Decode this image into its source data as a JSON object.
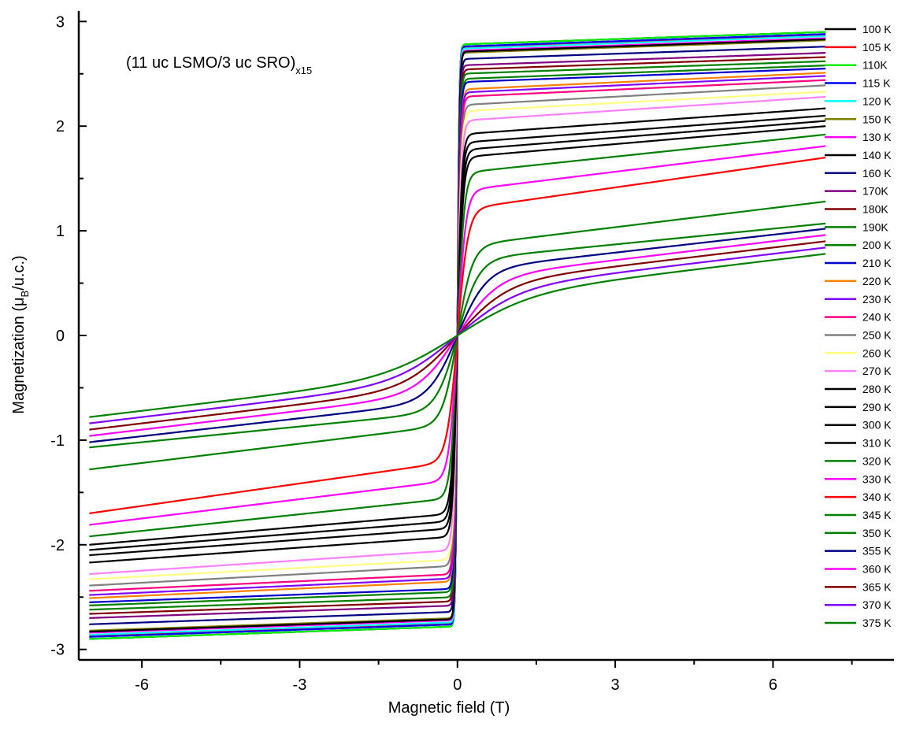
{
  "chart_data": {
    "type": "line",
    "title": "",
    "annotation": {
      "text": "(11 uc LSMO/3 uc SRO)",
      "subscript": "x15"
    },
    "xlabel": "Magnetic field (T)",
    "ylabel": {
      "prefix": "Magnetization (μ",
      "subscript": "B",
      "suffix": "/u.c.)"
    },
    "xlim": [
      -7.2,
      8.3
    ],
    "ylim": [
      -3.1,
      3.1
    ],
    "x_range": [
      -7,
      7
    ],
    "x_ticks": [
      -6,
      -3,
      0,
      3,
      6
    ],
    "x_tick_labels": [
      "-6",
      "-3",
      "0",
      "3",
      "6"
    ],
    "y_ticks": [
      -3,
      -2,
      -1,
      0,
      1,
      2,
      3
    ],
    "y_tick_labels": [
      "-3",
      "-2",
      "-1",
      "0",
      "1",
      "2",
      "3"
    ],
    "grid": false,
    "legend_position": "right",
    "series": [
      {
        "name": "100 K",
        "color": "#000000",
        "m_at_7T": 2.9,
        "m_sat": 2.78,
        "width": 0.035
      },
      {
        "name": "105 K",
        "color": "#ff0000",
        "m_at_7T": 2.87,
        "m_sat": 2.75,
        "width": 0.035
      },
      {
        "name": "110K",
        "color": "#00ee00",
        "m_at_7T": 2.9,
        "m_sat": 2.78,
        "width": 0.035
      },
      {
        "name": "115 K",
        "color": "#0000ff",
        "m_at_7T": 2.88,
        "m_sat": 2.76,
        "width": 0.035
      },
      {
        "name": "120 K",
        "color": "#00ffff",
        "m_at_7T": 2.86,
        "m_sat": 2.74,
        "width": 0.035
      },
      {
        "name": "150 K",
        "color": "#808000",
        "m_at_7T": 2.82,
        "m_sat": 2.7,
        "width": 0.04
      },
      {
        "name": "130 K",
        "color": "#ff00ff",
        "m_at_7T": 2.84,
        "m_sat": 2.72,
        "width": 0.038
      },
      {
        "name": "140 K",
        "color": "#000000",
        "m_at_7T": 2.83,
        "m_sat": 2.71,
        "width": 0.04
      },
      {
        "name": "160 K",
        "color": "#000080",
        "m_at_7T": 2.76,
        "m_sat": 2.64,
        "width": 0.045
      },
      {
        "name": "170K",
        "color": "#800080",
        "m_at_7T": 2.7,
        "m_sat": 2.58,
        "width": 0.045
      },
      {
        "name": "180K",
        "color": "#800000",
        "m_at_7T": 2.66,
        "m_sat": 2.54,
        "width": 0.05
      },
      {
        "name": "190K",
        "color": "#008000",
        "m_at_7T": 2.62,
        "m_sat": 2.5,
        "width": 0.05
      },
      {
        "name": "200 K",
        "color": "#008000",
        "m_at_7T": 2.58,
        "m_sat": 2.45,
        "width": 0.055
      },
      {
        "name": "210 K",
        "color": "#0000cc",
        "m_at_7T": 2.55,
        "m_sat": 2.42,
        "width": 0.055
      },
      {
        "name": "220 K",
        "color": "#ff8000",
        "m_at_7T": 2.51,
        "m_sat": 2.35,
        "width": 0.06
      },
      {
        "name": "230 K",
        "color": "#8000ff",
        "m_at_7T": 2.48,
        "m_sat": 2.32,
        "width": 0.06
      },
      {
        "name": "240 K",
        "color": "#ff0080",
        "m_at_7T": 2.44,
        "m_sat": 2.28,
        "width": 0.065
      },
      {
        "name": "250 K",
        "color": "#808080",
        "m_at_7T": 2.39,
        "m_sat": 2.2,
        "width": 0.07
      },
      {
        "name": "260 K",
        "color": "#ffff80",
        "m_at_7T": 2.33,
        "m_sat": 2.14,
        "width": 0.075
      },
      {
        "name": "270 K",
        "color": "#ff80ff",
        "m_at_7T": 2.28,
        "m_sat": 2.05,
        "width": 0.08
      },
      {
        "name": "280 K",
        "color": "#000000",
        "m_at_7T": 2.17,
        "m_sat": 1.92,
        "width": 0.085
      },
      {
        "name": "290 K",
        "color": "#000000",
        "m_at_7T": 2.1,
        "m_sat": 1.84,
        "width": 0.09
      },
      {
        "name": "300 K",
        "color": "#000000",
        "m_at_7T": 2.05,
        "m_sat": 1.77,
        "width": 0.1
      },
      {
        "name": "310 K",
        "color": "#000000",
        "m_at_7T": 2.0,
        "m_sat": 1.7,
        "width": 0.11
      },
      {
        "name": "320 K",
        "color": "#008000",
        "m_at_7T": 1.92,
        "m_sat": 1.55,
        "width": 0.13
      },
      {
        "name": "330 K",
        "color": "#ff00ff",
        "m_at_7T": 1.81,
        "m_sat": 1.38,
        "width": 0.16
      },
      {
        "name": "340 K",
        "color": "#ff0000",
        "m_at_7T": 1.7,
        "m_sat": 1.2,
        "width": 0.2
      },
      {
        "name": "345 K",
        "color": "#008000",
        "m_at_7T": 1.28,
        "m_sat": 0.85,
        "width": 0.28
      },
      {
        "name": "350 K",
        "color": "#008000",
        "m_at_7T": 1.07,
        "m_sat": 0.72,
        "width": 0.4
      },
      {
        "name": "355 K",
        "color": "#000080",
        "m_at_7T": 1.02,
        "m_sat": 0.62,
        "width": 0.55
      },
      {
        "name": "360 K",
        "color": "#ff00ff",
        "m_at_7T": 0.96,
        "m_sat": 0.54,
        "width": 0.75
      },
      {
        "name": "365 K",
        "color": "#800000",
        "m_at_7T": 0.9,
        "m_sat": 0.48,
        "width": 0.95
      },
      {
        "name": "370 K",
        "color": "#8000ff",
        "m_at_7T": 0.84,
        "m_sat": 0.42,
        "width": 1.15
      },
      {
        "name": "375 K",
        "color": "#008000",
        "m_at_7T": 0.78,
        "m_sat": 0.36,
        "width": 1.4
      }
    ]
  }
}
